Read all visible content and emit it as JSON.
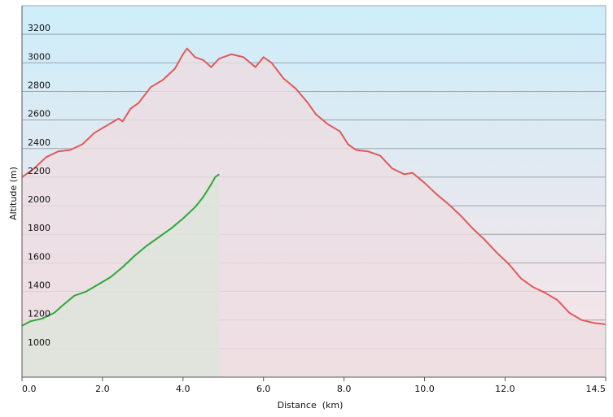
{
  "chart_data": {
    "type": "area",
    "xlabel": "Distance  (km)",
    "ylabel": "Altitude (m)",
    "xlim": [
      0,
      14.5
    ],
    "ylim": [
      800,
      3400
    ],
    "x_ticks": [
      "0.0",
      "2.0",
      "4.0",
      "6.0",
      "8.0",
      "10.0",
      "12.0",
      "14.5"
    ],
    "y_ticks": [
      "1000",
      "1200",
      "1400",
      "1600",
      "1800",
      "2000",
      "2200",
      "2400",
      "2600",
      "2800",
      "3000",
      "3200"
    ],
    "grid": true,
    "legend": "none",
    "background_gradient": [
      "#cdeefa",
      "#fbe3e6"
    ],
    "series": [
      {
        "color": "#e05a5a",
        "fill": "#ecdde2",
        "points": [
          [
            0,
            2200
          ],
          [
            0.3,
            2260
          ],
          [
            0.6,
            2340
          ],
          [
            0.9,
            2380
          ],
          [
            1.2,
            2390
          ],
          [
            1.5,
            2430
          ],
          [
            1.8,
            2510
          ],
          [
            2.1,
            2560
          ],
          [
            2.4,
            2610
          ],
          [
            2.5,
            2590
          ],
          [
            2.7,
            2680
          ],
          [
            2.9,
            2720
          ],
          [
            3.2,
            2830
          ],
          [
            3.5,
            2880
          ],
          [
            3.8,
            2960
          ],
          [
            4.0,
            3060
          ],
          [
            4.1,
            3100
          ],
          [
            4.3,
            3040
          ],
          [
            4.5,
            3020
          ],
          [
            4.7,
            2970
          ],
          [
            4.9,
            3030
          ],
          [
            5.2,
            3060
          ],
          [
            5.5,
            3040
          ],
          [
            5.8,
            2970
          ],
          [
            6.0,
            3040
          ],
          [
            6.2,
            3000
          ],
          [
            6.5,
            2890
          ],
          [
            6.8,
            2820
          ],
          [
            7.1,
            2720
          ],
          [
            7.3,
            2640
          ],
          [
            7.6,
            2570
          ],
          [
            7.9,
            2520
          ],
          [
            8.1,
            2430
          ],
          [
            8.3,
            2390
          ],
          [
            8.6,
            2380
          ],
          [
            8.9,
            2350
          ],
          [
            9.2,
            2260
          ],
          [
            9.5,
            2220
          ],
          [
            9.7,
            2230
          ],
          [
            10.0,
            2160
          ],
          [
            10.3,
            2080
          ],
          [
            10.6,
            2010
          ],
          [
            10.9,
            1930
          ],
          [
            11.2,
            1840
          ],
          [
            11.5,
            1760
          ],
          [
            11.8,
            1670
          ],
          [
            12.1,
            1590
          ],
          [
            12.4,
            1490
          ],
          [
            12.7,
            1430
          ],
          [
            13.0,
            1390
          ],
          [
            13.3,
            1340
          ],
          [
            13.6,
            1250
          ],
          [
            13.9,
            1200
          ],
          [
            14.2,
            1180
          ],
          [
            14.5,
            1170
          ]
        ]
      },
      {
        "color": "#2ea83a",
        "fill": "#dce5d9",
        "points": [
          [
            0,
            1160
          ],
          [
            0.2,
            1190
          ],
          [
            0.5,
            1210
          ],
          [
            0.8,
            1250
          ],
          [
            1.0,
            1300
          ],
          [
            1.3,
            1370
          ],
          [
            1.6,
            1400
          ],
          [
            1.9,
            1450
          ],
          [
            2.2,
            1500
          ],
          [
            2.5,
            1570
          ],
          [
            2.8,
            1650
          ],
          [
            3.1,
            1720
          ],
          [
            3.4,
            1780
          ],
          [
            3.7,
            1840
          ],
          [
            4.0,
            1910
          ],
          [
            4.3,
            1990
          ],
          [
            4.5,
            2060
          ],
          [
            4.7,
            2150
          ],
          [
            4.8,
            2200
          ],
          [
            4.9,
            2220
          ]
        ]
      }
    ]
  }
}
